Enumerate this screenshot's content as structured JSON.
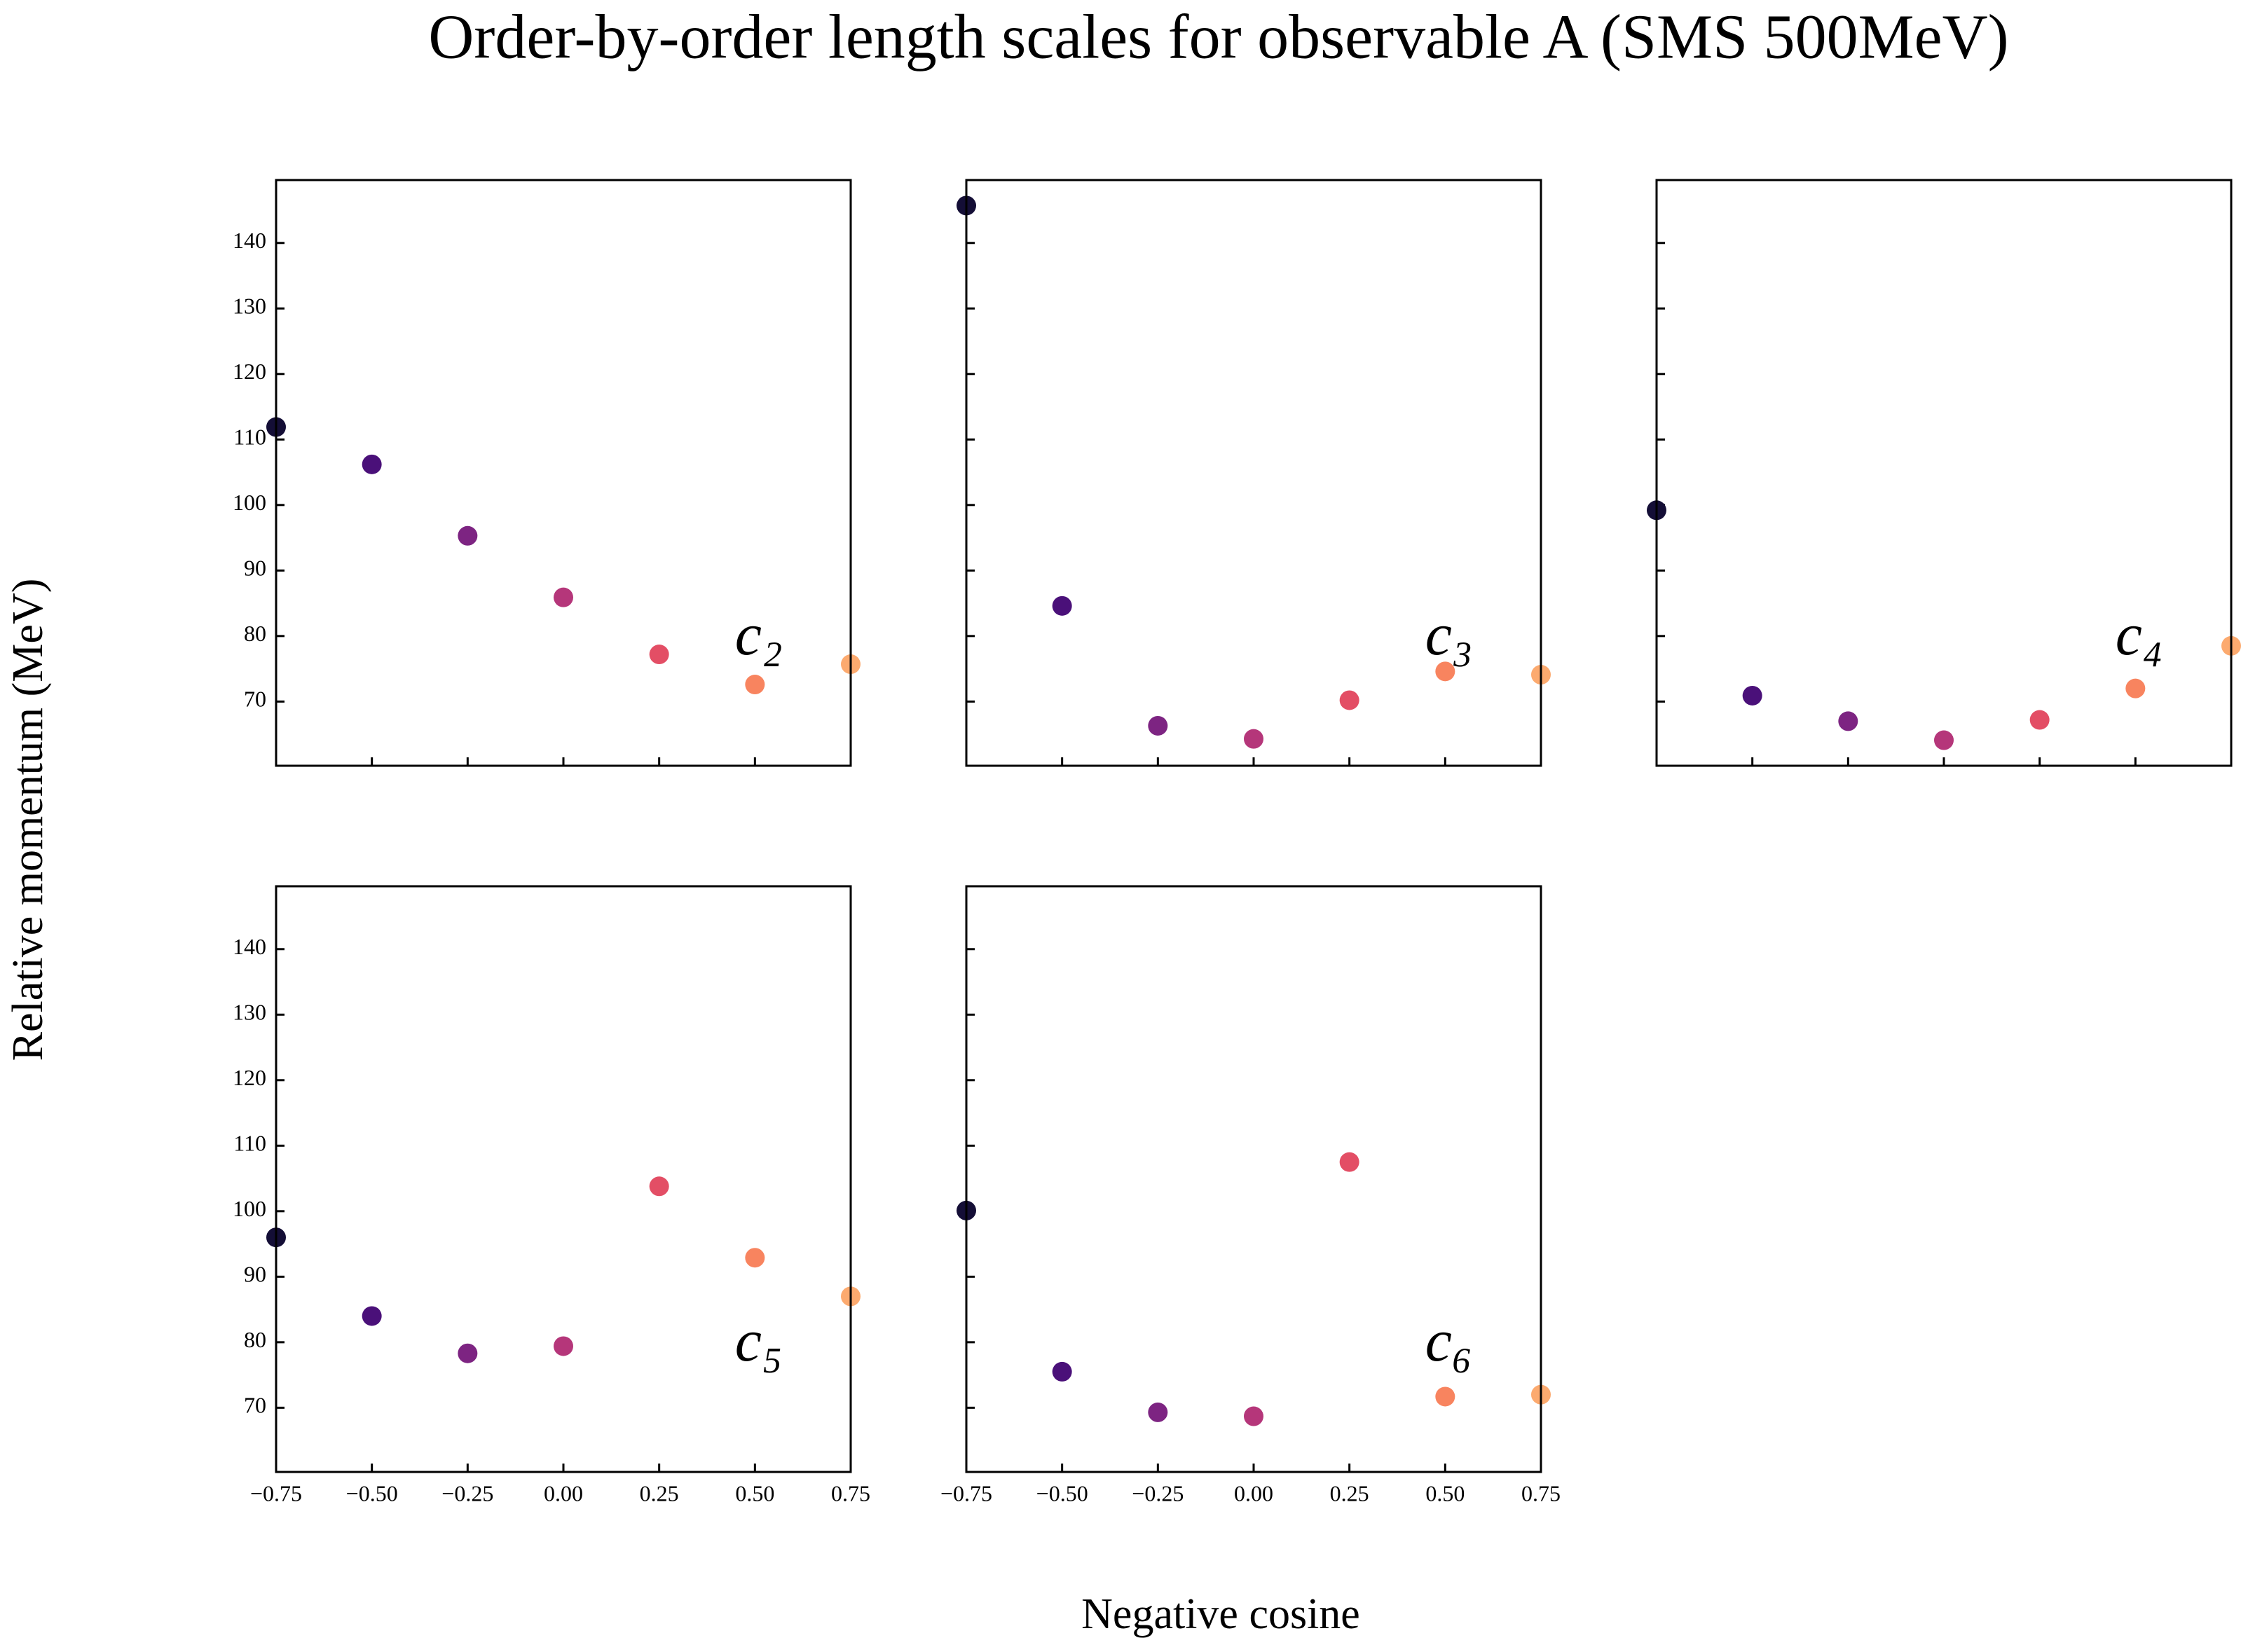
{
  "title": "Order-by-order length scales for observable A (SMS 500MeV)",
  "xlabel": "Negative cosine",
  "ylabel": "Relative momentum (MeV)",
  "chart_data": [
    {
      "type": "scatter",
      "annotation": "c₂",
      "x": [
        -0.75,
        -0.5,
        -0.25,
        0,
        0.25,
        0.5,
        0.75
      ],
      "values": [
        111.9,
        106.2,
        95.3,
        85.9,
        77.2,
        72.6,
        75.7
      ],
      "colors": [
        "#140e36",
        "#4a1079",
        "#7d2482",
        "#b5367a",
        "#e34e65",
        "#f8845f",
        "#fcaa6f"
      ],
      "xlim": [
        -0.75,
        0.75
      ],
      "ylim": [
        60.2,
        149.6
      ],
      "xticks": [
        {
          "value": -0.75,
          "label": "−0.75"
        },
        {
          "value": -0.5,
          "label": "−0.50"
        },
        {
          "value": -0.25,
          "label": "−0.25"
        },
        {
          "value": 0,
          "label": "0.00"
        },
        0.25,
        {
          "value": 0.5,
          "label": "0.50"
        },
        0.75
      ],
      "yticks": [
        70,
        80,
        90,
        100,
        110,
        120,
        130,
        140
      ]
    },
    {
      "type": "scatter",
      "annotation": "c₃",
      "x": [
        -0.75,
        -0.5,
        -0.25,
        0,
        0.25,
        0.5,
        0.75
      ],
      "values": [
        145.7,
        84.6,
        66.3,
        64.3,
        70.2,
        74.6,
        74.1
      ],
      "colors": [
        "#140e36",
        "#4a1079",
        "#7d2482",
        "#b5367a",
        "#e34e65",
        "#f8845f",
        "#fcaa6f"
      ],
      "xlim": [
        -0.75,
        0.75
      ],
      "ylim": [
        60.2,
        149.6
      ],
      "xticks": [
        {
          "value": -0.75,
          "label": "−0.75"
        },
        {
          "value": -0.5,
          "label": "−0.50"
        },
        {
          "value": -0.25,
          "label": "−0.25"
        },
        {
          "value": 0,
          "label": "0.00"
        },
        0.25,
        {
          "value": 0.5,
          "label": "0.50"
        },
        0.75
      ],
      "yticks": [
        70,
        80,
        90,
        100,
        110,
        120,
        130,
        140
      ]
    },
    {
      "type": "scatter",
      "annotation": "c₄",
      "x": [
        -0.75,
        -0.5,
        -0.25,
        0,
        0.25,
        0.5,
        0.75
      ],
      "values": [
        99.2,
        70.9,
        67.0,
        64.1,
        67.2,
        72.0,
        78.5
      ],
      "colors": [
        "#140e36",
        "#4a1079",
        "#7d2482",
        "#b5367a",
        "#e34e65",
        "#f8845f",
        "#fcaa6f"
      ],
      "xlim": [
        -0.75,
        0.75
      ],
      "ylim": [
        60.2,
        149.6
      ],
      "xticks": [
        {
          "value": -0.75,
          "label": "−0.75"
        },
        {
          "value": -0.5,
          "label": "−0.50"
        },
        {
          "value": -0.25,
          "label": "−0.25"
        },
        {
          "value": 0,
          "label": "0.00"
        },
        0.25,
        {
          "value": 0.5,
          "label": "0.50"
        },
        0.75
      ],
      "yticks": [
        70,
        80,
        90,
        100,
        110,
        120,
        130,
        140
      ]
    },
    {
      "type": "scatter",
      "annotation": "c₅",
      "x": [
        -0.75,
        -0.5,
        -0.25,
        0,
        0.25,
        0.5,
        0.75
      ],
      "values": [
        96.0,
        84.0,
        78.3,
        79.4,
        103.8,
        92.9,
        87.0
      ],
      "colors": [
        "#140e36",
        "#4a1079",
        "#7d2482",
        "#b5367a",
        "#e34e65",
        "#f8845f",
        "#fcaa6f"
      ],
      "xlim": [
        -0.75,
        0.75
      ],
      "ylim": [
        60.2,
        149.6
      ],
      "xticks": [
        {
          "value": -0.75,
          "label": "−0.75"
        },
        {
          "value": -0.5,
          "label": "−0.50"
        },
        {
          "value": -0.25,
          "label": "−0.25"
        },
        {
          "value": 0,
          "label": "0.00"
        },
        0.25,
        {
          "value": 0.5,
          "label": "0.50"
        },
        0.75
      ],
      "yticks": [
        70,
        80,
        90,
        100,
        110,
        120,
        130,
        140
      ]
    },
    {
      "type": "scatter",
      "annotation": "c₆",
      "x": [
        -0.75,
        -0.5,
        -0.25,
        0,
        0.25,
        0.5,
        0.75
      ],
      "values": [
        100.1,
        75.5,
        69.3,
        68.7,
        107.5,
        71.7,
        72.0
      ],
      "colors": [
        "#140e36",
        "#4a1079",
        "#7d2482",
        "#b5367a",
        "#e34e65",
        "#f8845f",
        "#fcaa6f"
      ],
      "xlim": [
        -0.75,
        0.75
      ],
      "ylim": [
        60.2,
        149.6
      ],
      "xticks": [
        {
          "value": -0.75,
          "label": "−0.75"
        },
        {
          "value": -0.5,
          "label": "−0.50"
        },
        {
          "value": -0.25,
          "label": "−0.25"
        },
        {
          "value": 0,
          "label": "0.00"
        },
        0.25,
        {
          "value": 0.5,
          "label": "0.50"
        },
        0.75
      ],
      "yticks": [
        70,
        80,
        90,
        100,
        110,
        120,
        130,
        140
      ]
    }
  ]
}
